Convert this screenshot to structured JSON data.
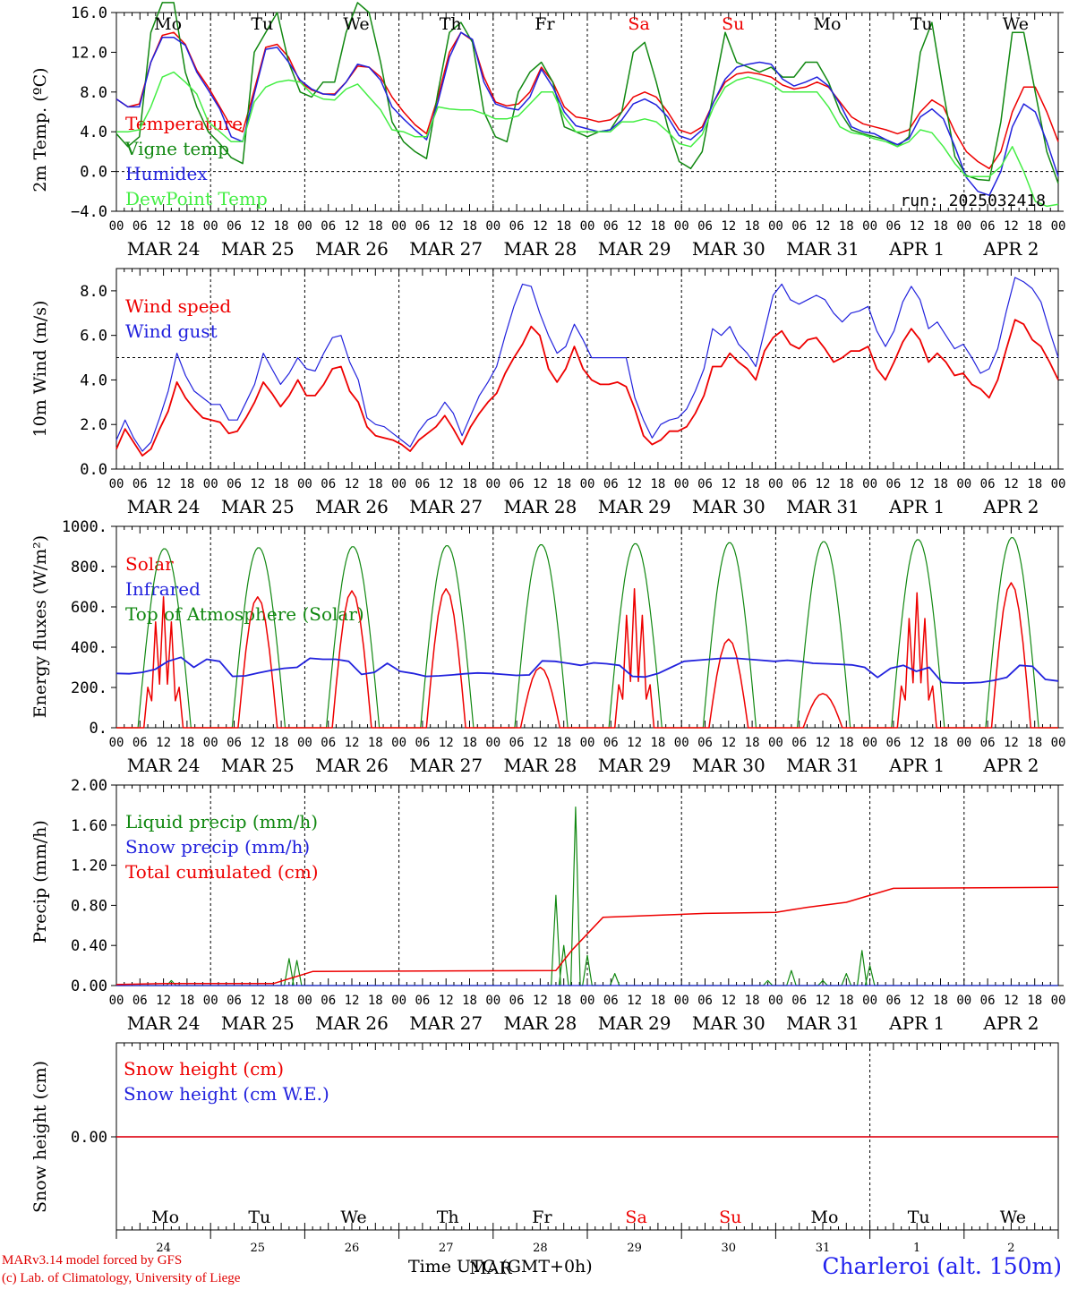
{
  "chart_data": [
    {
      "type": "line",
      "ylabel": "2m Temp. (ºC)",
      "ylim": [
        -4,
        16
      ],
      "yticks": [
        "16.0",
        "12.0",
        "8.0",
        "4.0",
        "0.0",
        "−4.0"
      ],
      "ytick_values": [
        16,
        12,
        8,
        4,
        0,
        -4
      ],
      "reference_line": 0,
      "legend": [
        "Temperature",
        "Vigne temp",
        "Humidex",
        "DewPoint Temp"
      ],
      "run_label": "run: 2025032418",
      "weekday_labels": [
        "Mo",
        "Tu",
        "We",
        "Th",
        "Fr",
        "Sa",
        "Su",
        "Mo",
        "Tu",
        "We"
      ],
      "series": [
        {
          "name": "Temperature",
          "color": "#ee0000",
          "values": [
            7.3,
            6.5,
            6.8,
            11,
            13.7,
            14,
            12.8,
            10.2,
            8.5,
            6.5,
            4.5,
            4,
            8.2,
            12.5,
            12.8,
            11.5,
            9,
            8.2,
            7.8,
            7.8,
            9,
            10.6,
            10.5,
            9.5,
            7.5,
            6,
            4.7,
            3.8,
            7.5,
            12,
            14,
            13.2,
            9.5,
            7,
            6.6,
            6.8,
            8,
            10.5,
            9,
            6.5,
            5.5,
            5.3,
            5,
            5.2,
            6,
            7.5,
            8,
            7.5,
            6,
            4.2,
            3.8,
            4.5,
            7,
            9,
            9.8,
            10,
            9.8,
            9.5,
            8.7,
            8.3,
            8.5,
            9,
            8.5,
            7,
            5.5,
            4.8,
            4.5,
            4.2,
            3.8,
            4.2,
            6,
            7.2,
            6.5,
            4,
            2,
            1,
            0.3,
            2,
            6,
            8.5,
            8.5,
            6,
            3
          ]
        },
        {
          "name": "Vigne temp",
          "color": "#118811",
          "values": [
            3.8,
            2.5,
            3.5,
            14,
            17,
            17,
            10,
            6.5,
            4,
            2.8,
            1.4,
            0.8,
            12,
            14,
            16,
            11,
            8,
            7.5,
            9,
            9,
            14,
            17,
            16,
            11,
            5,
            3,
            2,
            1.3,
            8,
            14,
            15,
            13,
            6,
            3.5,
            3,
            8,
            10,
            11,
            9,
            4.5,
            4,
            3.5,
            4,
            4.2,
            6,
            12,
            13,
            9,
            4.5,
            1,
            0.3,
            2,
            8,
            14,
            11,
            10.5,
            10,
            10.5,
            9.5,
            9.5,
            11,
            11,
            9,
            6,
            4.2,
            3.8,
            3.5,
            3.2,
            2.5,
            3.5,
            12,
            15,
            8,
            1.5,
            -0.4,
            -0.8,
            -0.9,
            5,
            14,
            14,
            8,
            2,
            -1.2
          ]
        },
        {
          "name": "Humidex",
          "color": "#2222dd",
          "values": [
            7.3,
            6.5,
            6.5,
            11,
            13.5,
            13.5,
            12.7,
            10,
            8.2,
            6.3,
            3.5,
            3,
            7.8,
            12.3,
            12.5,
            11,
            9.2,
            8.3,
            7.8,
            7.7,
            9,
            10.8,
            10.5,
            9.2,
            6.5,
            5.3,
            4.2,
            3.2,
            7,
            11.5,
            14,
            13.3,
            9,
            6.8,
            6.4,
            6.2,
            7.5,
            10.3,
            8.5,
            6,
            4.6,
            4.3,
            4,
            4.2,
            5.2,
            6.8,
            7.3,
            6.7,
            5.5,
            3.6,
            3.2,
            4.2,
            7,
            9.3,
            10.5,
            10.8,
            11,
            10.8,
            9.3,
            8.6,
            9,
            9.5,
            8.6,
            6.8,
            4.5,
            4,
            3.8,
            3.2,
            2.7,
            3.3,
            5.5,
            6.3,
            5.3,
            2.5,
            -0.6,
            -2,
            -2.4,
            0,
            4.5,
            6.8,
            6,
            3,
            -0.5
          ]
        },
        {
          "name": "DewPoint Temp",
          "color": "#44ee44",
          "values": [
            4,
            4,
            4.2,
            6.5,
            9.5,
            10,
            9,
            7.8,
            5,
            4,
            3,
            3,
            7,
            8.5,
            9,
            9.2,
            9,
            7.8,
            7.3,
            7.2,
            8.3,
            8.8,
            7.5,
            6.2,
            4.2,
            4,
            3.5,
            3.5,
            6.5,
            6.3,
            6.2,
            6.2,
            5.8,
            5.3,
            5.3,
            5.6,
            6.8,
            8,
            8,
            5.5,
            4,
            4,
            4,
            4,
            5,
            5,
            5.3,
            5,
            4,
            2.8,
            2.5,
            3.7,
            6.5,
            8.5,
            9.2,
            9.5,
            9.2,
            8.8,
            8,
            8,
            8,
            8,
            6.5,
            4.5,
            3.9,
            3.7,
            3.3,
            3,
            2.5,
            3,
            4.2,
            3.9,
            2.5,
            0.8,
            -0.5,
            -0.5,
            -0.5,
            0.5,
            2.5,
            0,
            -3,
            -3.5,
            -3.3
          ]
        }
      ]
    },
    {
      "type": "line",
      "ylabel": "10m Wind (m/s)",
      "ylim": [
        0,
        9
      ],
      "yticks": [
        "8.0",
        "6.0",
        "4.0",
        "2.0",
        "0.0"
      ],
      "ytick_values": [
        8,
        6,
        4,
        2,
        0
      ],
      "reference_line": 5,
      "legend": [
        "Wind speed",
        "Wind gust"
      ],
      "series": [
        {
          "name": "Wind speed",
          "color": "#ee0000",
          "values": [
            0.9,
            1.8,
            1.2,
            0.6,
            0.9,
            1.8,
            2.6,
            3.9,
            3.2,
            2.7,
            2.3,
            2.2,
            2.1,
            1.6,
            1.7,
            2.3,
            3,
            3.9,
            3.4,
            2.8,
            3.3,
            4,
            3.3,
            3.3,
            3.8,
            4.5,
            4.6,
            3.5,
            3,
            1.9,
            1.5,
            1.4,
            1.3,
            1.1,
            0.8,
            1.3,
            1.6,
            1.9,
            2.4,
            1.8,
            1.1,
            1.9,
            2.5,
            3,
            3.4,
            4.3,
            5,
            5.6,
            6.4,
            6,
            4.5,
            3.9,
            4.5,
            5.5,
            4.5,
            4,
            3.8,
            3.8,
            3.9,
            3.7,
            2.7,
            1.5,
            1.1,
            1.3,
            1.7,
            1.7,
            1.9,
            2.5,
            3.3,
            4.6,
            4.6,
            5.2,
            4.8,
            4.5,
            4,
            5.3,
            5.9,
            6.2,
            5.6,
            5.4,
            5.8,
            5.9,
            5.4,
            4.8,
            5,
            5.3,
            5.3,
            5.5,
            4.5,
            4,
            4.8,
            5.7,
            6.3,
            5.8,
            4.8,
            5.2,
            4.8,
            4.2,
            4.3,
            3.8,
            3.6,
            3.2,
            4,
            5.4,
            6.7,
            6.5,
            5.8,
            5.5,
            4.8,
            4
          ]
        },
        {
          "name": "Wind gust",
          "color": "#2222dd",
          "values": [
            1.3,
            2.2,
            1.4,
            0.8,
            1.2,
            2.3,
            3.5,
            5.2,
            4.2,
            3.5,
            3.2,
            2.9,
            2.9,
            2.2,
            2.2,
            3,
            3.8,
            5.2,
            4.5,
            3.8,
            4.3,
            5,
            4.5,
            4.4,
            5.2,
            5.9,
            6,
            4.8,
            4,
            2.3,
            2,
            1.9,
            1.6,
            1.3,
            1,
            1.7,
            2.2,
            2.4,
            3,
            2.5,
            1.5,
            2.4,
            3.3,
            3.9,
            4.6,
            6,
            7.3,
            8.3,
            8.2,
            7,
            6,
            5.2,
            5.5,
            6.5,
            5.8,
            5,
            5,
            5,
            5,
            5,
            3.2,
            2.2,
            1.4,
            2,
            2.2,
            2.3,
            2.7,
            3.5,
            4.5,
            6.3,
            6,
            6.4,
            5.6,
            5.2,
            4.6,
            6.2,
            7.8,
            8.3,
            7.6,
            7.4,
            7.6,
            7.8,
            7.6,
            7,
            6.6,
            7,
            7.1,
            7.3,
            6.2,
            5.5,
            6.2,
            7.5,
            8.2,
            7.6,
            6.3,
            6.6,
            6,
            5.4,
            5.6,
            5,
            4.3,
            4.5,
            5.4,
            7.1,
            8.6,
            8.4,
            8.1,
            7.5,
            6.2,
            5
          ]
        }
      ]
    },
    {
      "type": "line",
      "ylabel": "Energy fluxes (W/m²)",
      "ylim": [
        0,
        1000
      ],
      "yticks": [
        "1000.",
        "800.",
        "600.",
        "400.",
        "200.",
        "0."
      ],
      "ytick_values": [
        1000,
        800,
        600,
        400,
        200,
        0
      ],
      "legend": [
        "Solar",
        "Infrared",
        "Top of Atmosphere (Solar)"
      ],
      "series": [
        {
          "name": "Solar",
          "color": "#ee0000",
          "daily_peaks": [
            650,
            650,
            680,
            690,
            300,
            690,
            440,
            170,
            670,
            720
          ]
        },
        {
          "name": "Infrared",
          "color": "#2222dd",
          "values": [
            270,
            268,
            275,
            290,
            330,
            350,
            300,
            340,
            330,
            255,
            258,
            272,
            285,
            295,
            300,
            345,
            340,
            340,
            330,
            265,
            275,
            320,
            280,
            270,
            255,
            258,
            262,
            268,
            272,
            270,
            265,
            260,
            262,
            332,
            330,
            320,
            310,
            322,
            318,
            310,
            255,
            252,
            270,
            300,
            330,
            335,
            340,
            345,
            345,
            340,
            335,
            330,
            335,
            330,
            320,
            318,
            315,
            312,
            300,
            250,
            295,
            310,
            280,
            300,
            225,
            222,
            222,
            225,
            235,
            250,
            310,
            305,
            240,
            232
          ]
        },
        {
          "name": "Top of Atmosphere (Solar)",
          "color": "#118811",
          "daily_peaks": [
            890,
            895,
            900,
            905,
            910,
            915,
            920,
            925,
            935,
            945
          ]
        }
      ]
    },
    {
      "type": "line",
      "ylabel": "Precip (mm/h)",
      "ylim": [
        0,
        2
      ],
      "yticks": [
        "2.00",
        "1.60",
        "1.20",
        "0.80",
        "0.40",
        "0.00"
      ],
      "ytick_values": [
        2,
        1.6,
        1.2,
        0.8,
        0.4,
        0
      ],
      "legend": [
        "Liquid precip (mm/h)",
        "Snow precip (mm/h)",
        "Total cumulated (cm)"
      ],
      "series": [
        {
          "name": "Liquid precip (mm/h)",
          "color": "#118811",
          "spikes": [
            [
              14,
              0.05
            ],
            [
              44,
              0.27
            ],
            [
              46,
              0.25
            ],
            [
              112,
              0.9
            ],
            [
              114,
              0.4
            ],
            [
              117,
              1.78
            ],
            [
              120,
              0.3
            ],
            [
              127,
              0.12
            ],
            [
              166,
              0.05
            ],
            [
              172,
              0.15
            ],
            [
              180,
              0.05
            ],
            [
              186,
              0.12
            ],
            [
              190,
              0.35
            ],
            [
              192,
              0.2
            ]
          ]
        },
        {
          "name": "Snow precip (mm/h)",
          "color": "#2222dd",
          "values": [
            0,
            0
          ]
        },
        {
          "name": "Total cumulated (cm)",
          "color": "#ee0000",
          "values": [
            [
              0,
              0.01
            ],
            [
              12,
              0.02
            ],
            [
              40,
              0.02
            ],
            [
              50,
              0.14
            ],
            [
              112,
              0.15
            ],
            [
              116,
              0.35
            ],
            [
              124,
              0.68
            ],
            [
              150,
              0.72
            ],
            [
              168,
              0.73
            ],
            [
              176,
              0.78
            ],
            [
              186,
              0.83
            ],
            [
              198,
              0.97
            ],
            [
              240,
              0.98
            ]
          ]
        }
      ]
    },
    {
      "type": "line",
      "ylabel": "Snow height (cm)",
      "yticks": [
        "0.00"
      ],
      "legend": [
        "Snow height (cm)",
        "Snow height (cm W.E.)"
      ],
      "series": [
        {
          "name": "Snow height (cm)",
          "color": "#ee0000",
          "values": [
            0,
            0
          ]
        },
        {
          "name": "Snow height (cm W.E.)",
          "color": "#2222dd",
          "values": [
            0,
            0
          ]
        }
      ]
    }
  ],
  "x_axis": {
    "hour_labels": [
      "00",
      "06",
      "12",
      "18"
    ],
    "date_labels": [
      "MAR 24",
      "MAR 25",
      "MAR 26",
      "MAR 27",
      "MAR 28",
      "MAR 29",
      "MAR 30",
      "MAR 31",
      "APR  1",
      "APR  2"
    ],
    "weekday_colors": [
      "#000000",
      "#000000",
      "#000000",
      "#000000",
      "#000000",
      "#ee0000",
      "#ee0000",
      "#000000",
      "#000000",
      "#000000"
    ],
    "bottom_days": [
      "24",
      "25",
      "26",
      "27",
      "28",
      "29",
      "30",
      "31",
      "1",
      "2"
    ],
    "bottom_title": "Time UTC (GMT+0h)",
    "bottom_month": "MAR"
  },
  "footer": {
    "credit_line1": "MARv3.14 model forced by GFS",
    "credit_line2": "(c) Lab. of Climatology, University of Liege",
    "station": "Charleroi (alt. 150m)"
  }
}
